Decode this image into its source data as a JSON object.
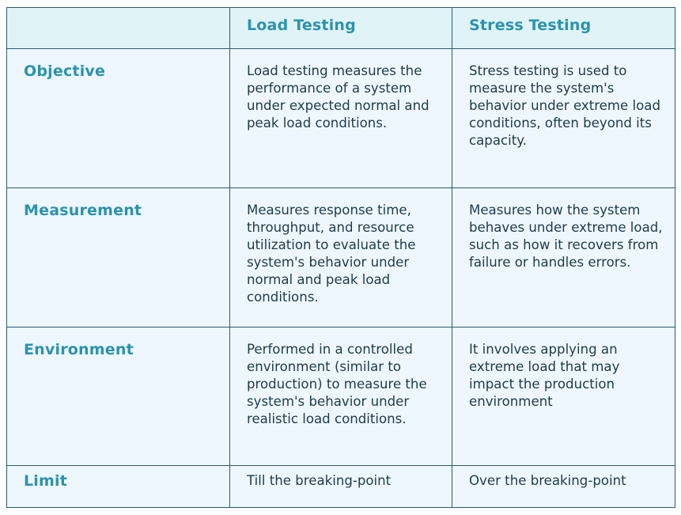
{
  "header": {
    "corner": "",
    "load_testing": "Load Testing",
    "stress_testing": "Stress Testing"
  },
  "rows": [
    {
      "label": "Objective",
      "load": "Load testing measures the performance of a system under expected normal and peak load conditions.",
      "stress": "Stress testing is used to measure the system's behavior under extreme load conditions, often beyond its capacity."
    },
    {
      "label": "Measurement",
      "load": "Measures response time, throughput, and resource utilization to evaluate the system's behavior under normal and peak load conditions.",
      "stress": "Measures how the system behaves under extreme load, such as how it recovers from failure or handles errors."
    },
    {
      "label": "Environment",
      "load": "Performed in a controlled environment (similar to production) to measure the system's behavior under realistic load conditions.",
      "stress": "It involves applying an extreme load that may impact the production environment"
    },
    {
      "label": "Limit",
      "load": "Till the breaking-point",
      "stress": "Over the breaking-point"
    }
  ],
  "colors": {
    "header_bg": "#e0f4f7",
    "cell_bg": "#eef7fd",
    "border": "#2b5a6e",
    "heading_text": "#2a93ad",
    "body_text": "#1f3b4a"
  }
}
